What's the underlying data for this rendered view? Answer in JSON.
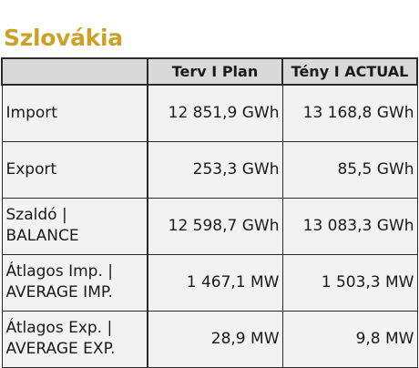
{
  "title": "Szlovákia",
  "table": {
    "headers": [
      "",
      "Terv I Plan",
      "Tény I ACTUAL"
    ],
    "rows": [
      {
        "label_line1": "Import",
        "label_line2": "",
        "plan": "12 851,9 GWh",
        "actual": "13 168,8 GWh"
      },
      {
        "label_line1": "Export",
        "label_line2": "",
        "plan": "253,3 GWh",
        "actual": "85,5 GWh"
      },
      {
        "label_line1": "Szaldó |",
        "label_line2": "BALANCE",
        "plan": "12 598,7 GWh",
        "actual": "13 083,3 GWh"
      },
      {
        "label_line1": "Átlagos Imp. |",
        "label_line2": "AVERAGE IMP.",
        "plan": "1 467,1 MW",
        "actual": "1 503,3 MW"
      },
      {
        "label_line1": "Átlagos Exp. |",
        "label_line2": "AVERAGE EXP.",
        "plan": "28,9 MW",
        "actual": "9,8 MW"
      }
    ]
  },
  "colors": {
    "title": "#c9a227",
    "header_bg": "#d9d9d9",
    "cell_bg": "#f2f2f2",
    "border": "#2a2a2a"
  }
}
